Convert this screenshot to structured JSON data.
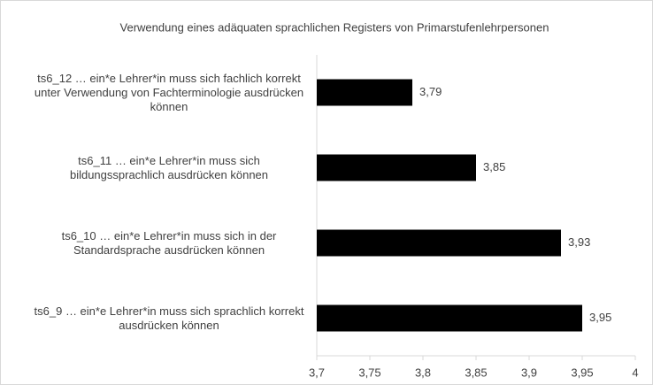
{
  "chart_data": {
    "type": "bar",
    "orientation": "horizontal",
    "title": "Verwendung eines adäquaten sprachlichen Registers von Primarstufenlehrpersonen",
    "categories": [
      "ts6_12 … ein*e Lehrer*in muss sich fachlich korrekt unter Verwendung von Fachterminologie ausdrücken können",
      "ts6_11 … ein*e Lehrer*in muss sich bildungssprachlich ausdrücken können",
      "ts6_10 … ein*e Lehrer*in muss sich in der Standardsprache ausdrücken können",
      "ts6_9 … ein*e Lehrer*in muss sich sprachlich korrekt ausdrücken können"
    ],
    "values": [
      3.79,
      3.85,
      3.93,
      3.95
    ],
    "value_labels": [
      "3,79",
      "3,85",
      "3,93",
      "3,95"
    ],
    "color": "#000000",
    "xlim": [
      3.7,
      4
    ],
    "xticks": [
      {
        "value": 3.7,
        "label": "3,7"
      },
      {
        "value": 3.75,
        "label": "3,75"
      },
      {
        "value": 3.8,
        "label": "3,8"
      },
      {
        "value": 3.85,
        "label": "3,85"
      },
      {
        "value": 3.9,
        "label": "3,9"
      },
      {
        "value": 3.95,
        "label": "3,95"
      },
      4
    ],
    "grid": false
  }
}
